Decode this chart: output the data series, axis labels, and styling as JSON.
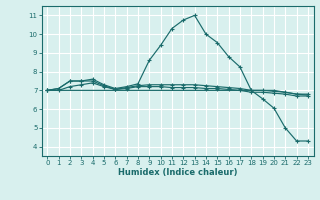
{
  "xlabel": "Humidex (Indice chaleur)",
  "xlim": [
    -0.5,
    23.5
  ],
  "ylim": [
    3.5,
    11.5
  ],
  "xticks": [
    0,
    1,
    2,
    3,
    4,
    5,
    6,
    7,
    8,
    9,
    10,
    11,
    12,
    13,
    14,
    15,
    16,
    17,
    18,
    19,
    20,
    21,
    22,
    23
  ],
  "yticks": [
    4,
    5,
    6,
    7,
    8,
    9,
    10,
    11
  ],
  "bg_color": "#d8f0ee",
  "grid_color": "#ffffff",
  "line_color": "#1a6b6b",
  "series": [
    {
      "x": [
        0,
        1,
        2,
        3,
        4,
        5,
        6,
        7,
        8,
        9,
        10,
        11,
        12,
        13,
        14,
        15,
        16,
        17,
        18,
        19,
        20,
        21,
        22,
        23
      ],
      "y": [
        7.0,
        7.1,
        7.5,
        7.5,
        7.6,
        7.3,
        7.1,
        7.2,
        7.35,
        8.6,
        9.4,
        10.3,
        10.75,
        11.0,
        10.0,
        9.55,
        8.8,
        8.25,
        7.0,
        6.55,
        6.05,
        5.0,
        4.3,
        4.3
      ]
    },
    {
      "x": [
        0,
        1,
        2,
        3,
        4,
        5,
        6,
        7,
        8,
        9,
        10,
        11,
        12,
        13,
        14,
        15,
        16,
        17,
        18,
        19,
        20,
        21,
        22,
        23
      ],
      "y": [
        7.0,
        7.1,
        7.5,
        7.5,
        7.5,
        7.25,
        7.05,
        7.15,
        7.25,
        7.3,
        7.3,
        7.3,
        7.3,
        7.3,
        7.25,
        7.2,
        7.15,
        7.1,
        7.0,
        7.0,
        6.95,
        6.9,
        6.8,
        6.8
      ]
    },
    {
      "x": [
        0,
        1,
        2,
        3,
        4,
        5,
        6,
        7,
        8,
        9,
        10,
        11,
        12,
        13,
        14,
        15,
        16,
        17,
        18,
        19,
        20,
        21,
        22,
        23
      ],
      "y": [
        7.0,
        7.0,
        7.2,
        7.3,
        7.4,
        7.2,
        7.05,
        7.1,
        7.2,
        7.2,
        7.2,
        7.15,
        7.15,
        7.15,
        7.1,
        7.1,
        7.05,
        7.0,
        6.9,
        6.9,
        6.85,
        6.8,
        6.7,
        6.7
      ]
    },
    {
      "x": [
        0,
        1,
        2,
        3,
        4,
        5,
        6,
        7,
        8,
        9,
        10,
        11,
        12,
        13,
        14,
        15,
        16,
        17,
        18,
        19,
        20,
        21,
        22,
        23
      ],
      "y": [
        7.0,
        7.0,
        7.0,
        7.0,
        7.0,
        7.0,
        7.0,
        7.0,
        7.0,
        7.0,
        7.0,
        7.0,
        7.0,
        7.0,
        7.0,
        7.0,
        7.0,
        7.0,
        7.0,
        7.0,
        7.0,
        6.9,
        6.8,
        6.75
      ]
    }
  ]
}
